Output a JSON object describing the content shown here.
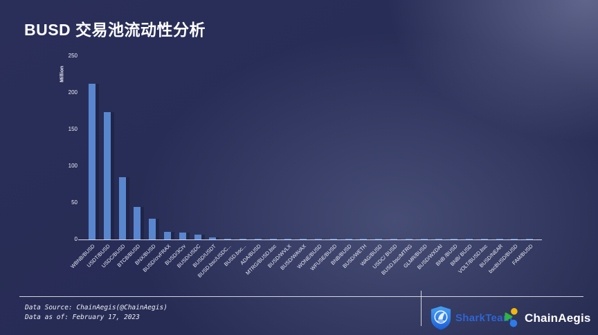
{
  "page": {
    "title": "BUSD 交易池流动性分析"
  },
  "chart_data": {
    "type": "bar",
    "title": "BUSD 交易池流动性分析",
    "xlabel": "",
    "ylabel": "Million",
    "ylim": [
      0,
      250
    ],
    "yticks": [
      0,
      50,
      100,
      150,
      200,
      250
    ],
    "grid": false,
    "legend": "none",
    "bar_color": "#5987cf",
    "categories": [
      "WBNB/BUSD",
      "USDT/BUSD",
      "USDC/BUSD",
      "BTCB/BUSD",
      "BNX/BUSD",
      "BUSD/crvFRAX",
      "BUSD/3Crv",
      "BUSD/USDC",
      "BUSD/USDT",
      "BUSD.bsc/USDC...",
      "BUSD.bsc...",
      "ADA/BUSD",
      "MTRG/BUSD.bsc",
      "BUSD/WVLX",
      "BUSD/WAVAX",
      "WONE/BUSD",
      "WFUSE/BUSD",
      "BNB/BUSD",
      "BUSD/WETH",
      "WAG/BUSD",
      "USDC/ BUSD",
      "BUSD.bsc/MTRG",
      "GLMR/BUSD",
      "BUSD/WXDAI",
      "BNB /BUSD",
      "BNB/ BUSD",
      "VOLT/BUSD.bsc",
      "BUSD/NEAR",
      "bscBUSD/BUSD",
      "FAM/BUSD"
    ],
    "values": [
      212,
      174,
      85,
      44,
      28,
      10,
      9,
      7,
      3,
      1.2,
      0.5,
      0.4,
      0.4,
      0.35,
      0.3,
      0.3,
      0.3,
      0.25,
      0.25,
      0.2,
      0.2,
      0.2,
      0.15,
      0.15,
      0.15,
      0.1,
      0.1,
      0.1,
      0.1,
      0.1
    ]
  },
  "footer": {
    "source_line": "Data Source: ChainAegis(@ChainAegis)",
    "date_line": "Data as of: February 17, 2023",
    "sharkteam_label": "SharkTeam",
    "chainaegis_label": "ChainAegis"
  },
  "colors": {
    "background_dark": "#272c55",
    "background_light": "#6a7095",
    "bar": "#5987cf",
    "text": "#ffffff",
    "sharkteam_blue": "#2f66d9",
    "chainaegis_green": "#2eb53c",
    "chainaegis_yellow": "#f2b70c",
    "chainaegis_blue": "#2d7ce8"
  }
}
